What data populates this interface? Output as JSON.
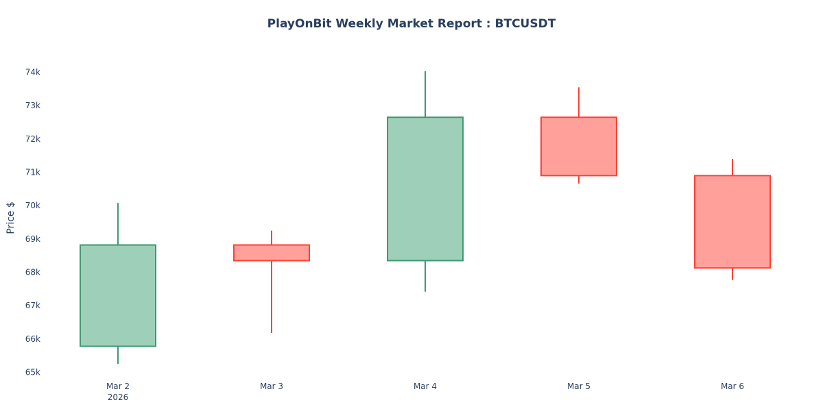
{
  "chart_data": {
    "type": "candlestick",
    "title": "PlayOnBit Weekly Market Report : BTCUSDT",
    "xlabel": "",
    "ylabel": "Price $",
    "x": [
      "Mar 2",
      "Mar 3",
      "Mar 4",
      "Mar 5",
      "Mar 6"
    ],
    "x_year_label": "2026",
    "y_ticks": [
      "65k",
      "66k",
      "67k",
      "68k",
      "69k",
      "70k",
      "71k",
      "72k",
      "73k",
      "74k"
    ],
    "ylim": [
      65000,
      74000
    ],
    "grid": false,
    "candles": [
      {
        "date": "Mar 2",
        "open": 65780,
        "high": 70080,
        "low": 65250,
        "close": 68820
      },
      {
        "date": "Mar 3",
        "open": 68820,
        "high": 69250,
        "low": 66180,
        "close": 68350
      },
      {
        "date": "Mar 4",
        "open": 68350,
        "high": 74030,
        "low": 67420,
        "close": 72650
      },
      {
        "date": "Mar 5",
        "open": 72650,
        "high": 73550,
        "low": 70660,
        "close": 70900
      },
      {
        "date": "Mar 6",
        "open": 70900,
        "high": 71400,
        "low": 67770,
        "close": 68130
      }
    ],
    "colors": {
      "increasing_line": "#3d9970",
      "increasing_fill": "#9ecfb8",
      "decreasing_line": "#ff4136",
      "decreasing_fill": "#ffa09b"
    }
  }
}
